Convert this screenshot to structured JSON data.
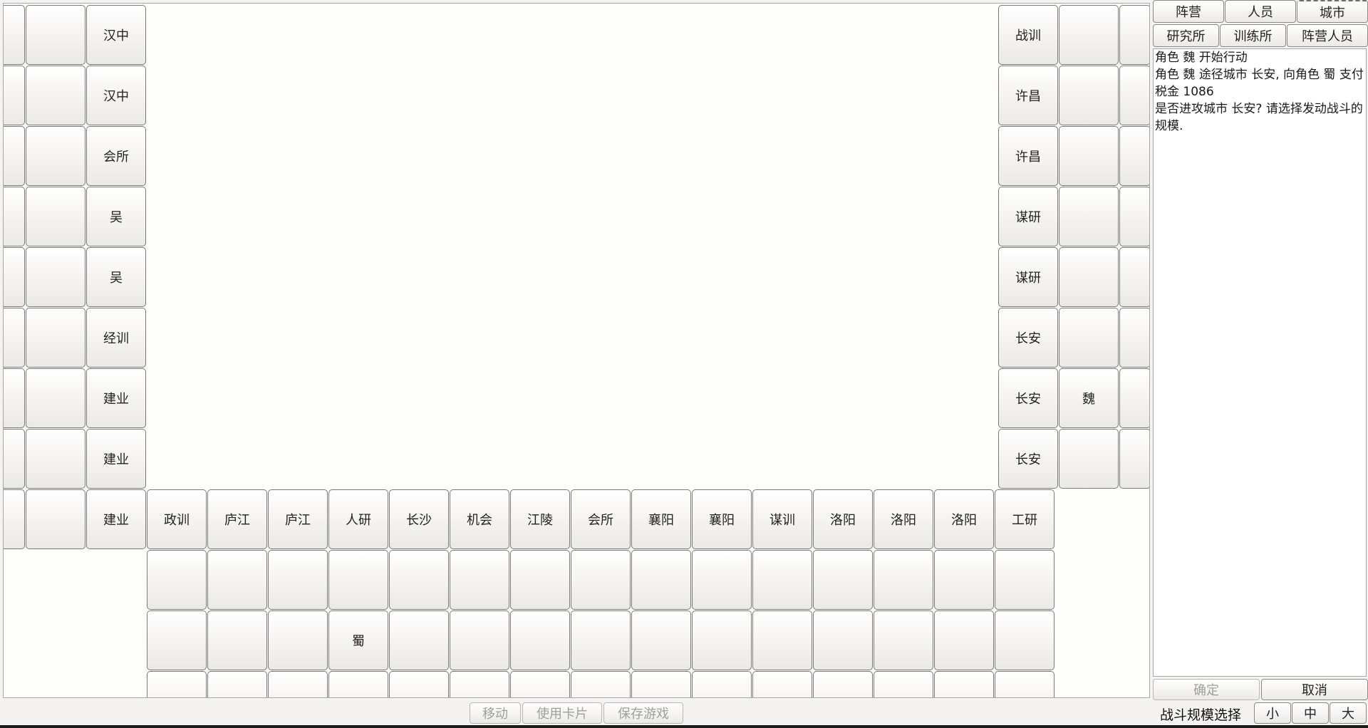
{
  "board": {
    "left_col1": [
      "",
      "",
      "",
      "",
      "",
      "",
      "",
      "",
      ""
    ],
    "left_col2": [
      "汉中",
      "汉中",
      "会所",
      "吴",
      "吴",
      "经训",
      "建业",
      "建业",
      "建业"
    ],
    "bottom_row": [
      "政训",
      "庐江",
      "庐江",
      "人研",
      "长沙",
      "机会",
      "江陵",
      "会所",
      "襄阳",
      "襄阳",
      "谋训",
      "洛阳",
      "洛阳",
      "洛阳",
      "工研"
    ],
    "below_row1": [
      "",
      "",
      "",
      "",
      "",
      "",
      "",
      "",
      "",
      "",
      "",
      "",
      "",
      "",
      ""
    ],
    "below_row2": [
      "",
      "",
      "",
      "蜀",
      "",
      "",
      "",
      "",
      "",
      "",
      "",
      "",
      "",
      "",
      ""
    ],
    "below_row3": [
      "",
      "",
      "",
      "",
      "",
      "",
      "",
      "",
      "",
      "",
      "",
      "",
      "",
      "",
      ""
    ],
    "right_col1": [
      "战训",
      "许昌",
      "许昌",
      "谋研",
      "谋研",
      "长安",
      "长安",
      "长安"
    ],
    "right_col2": [
      "",
      "",
      "",
      "",
      "",
      "",
      "魏",
      ""
    ],
    "right_col3": [
      "",
      "",
      "",
      "",
      "",
      "",
      "",
      ""
    ]
  },
  "top_tabs": [
    "阵营",
    "人员",
    "城市"
  ],
  "sub_tabs": [
    "研究所",
    "训练所",
    "阵营人员"
  ],
  "log": [
    "角色 魏 开始行动",
    "角色 魏 途径城市 长安, 向角色 蜀 支付税金 1086",
    "是否进攻城市 长安? 请选择发动战斗的规模."
  ],
  "confirm_label": "确定",
  "cancel_label": "取消",
  "battle_scale_label": "战斗规模选择",
  "scale_options": [
    "小",
    "中",
    "大"
  ],
  "bottom_buttons": [
    "移动",
    "使用卡片",
    "保存游戏"
  ]
}
